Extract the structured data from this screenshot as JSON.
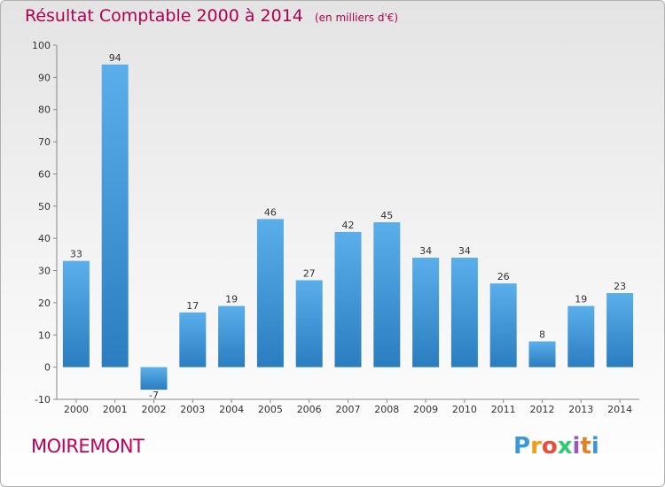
{
  "title": "Résultat Comptable 2000 à 2014",
  "unit_note": "(en milliers d'€)",
  "commune": "MOIREMONT",
  "brand": {
    "letters": [
      "P",
      "r",
      "o",
      "x",
      "i",
      "t",
      "i"
    ],
    "colors": [
      "#3a9ad9",
      "#f39c12",
      "#e74c3c",
      "#2ecc71",
      "#9b59b6",
      "#e67e22",
      "#3498db"
    ]
  },
  "colors": {
    "bar_top": "#5aaeea",
    "bar_bottom": "#2a7ec0",
    "title": "#b0004f",
    "commune": "#c0005a"
  },
  "chart_data": {
    "type": "bar",
    "title": "Résultat Comptable 2000 à 2014",
    "subtitle": "(en milliers d'€)",
    "categories": [
      "2000",
      "2001",
      "2002",
      "2003",
      "2004",
      "2005",
      "2006",
      "2007",
      "2008",
      "2009",
      "2010",
      "2011",
      "2012",
      "2013",
      "2014"
    ],
    "values": [
      33,
      94,
      -7,
      17,
      19,
      46,
      27,
      42,
      45,
      34,
      34,
      26,
      8,
      19,
      23
    ],
    "ylim": [
      -10,
      100
    ],
    "yticks": [
      -10,
      0,
      10,
      20,
      30,
      40,
      50,
      60,
      70,
      80,
      90,
      100
    ],
    "grid": false,
    "legend": "none"
  }
}
